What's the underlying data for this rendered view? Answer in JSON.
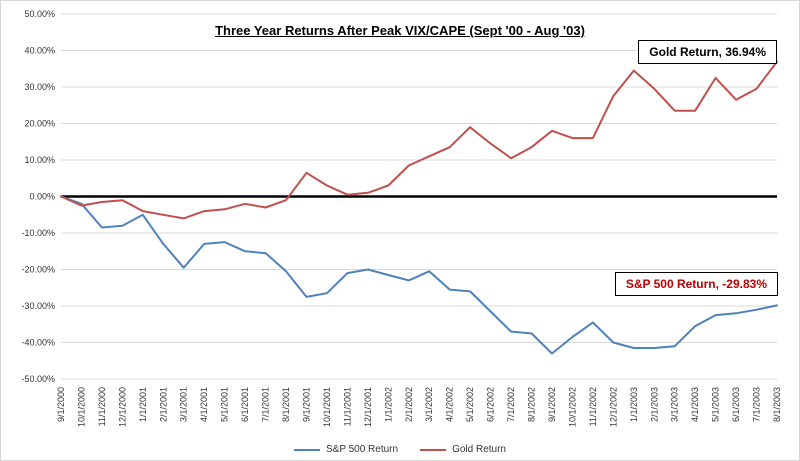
{
  "title": "Three Year Returns After Peak VIX/CAPE (Sept '00 - Aug '03)",
  "annotations": {
    "gold": {
      "text": "Gold Return, 36.94%",
      "color": "#000000"
    },
    "sp500": {
      "text": "S&P 500 Return, -29.83%",
      "color": "#C00000"
    }
  },
  "chart_data": {
    "type": "line",
    "title": "Three Year Returns After Peak VIX/CAPE (Sept '00 - Aug '03)",
    "xlabel": "",
    "ylabel": "",
    "ylim": [
      -50,
      50
    ],
    "ytick_step": 10,
    "ytick_format": "percent",
    "grid": true,
    "zero_line": true,
    "legend_position": "bottom",
    "x": [
      "9/1/2000",
      "10/1/2000",
      "11/1/2000",
      "12/1/2000",
      "1/1/2001",
      "2/1/2001",
      "3/1/2001",
      "4/1/2001",
      "5/1/2001",
      "6/1/2001",
      "7/1/2001",
      "8/1/2001",
      "9/1/2001",
      "10/1/2001",
      "11/1/2001",
      "12/1/2001",
      "1/1/2002",
      "2/1/2002",
      "3/1/2002",
      "4/1/2002",
      "5/1/2002",
      "6/1/2002",
      "7/1/2002",
      "8/1/2002",
      "9/1/2002",
      "10/1/2002",
      "11/1/2002",
      "12/1/2002",
      "1/1/2003",
      "2/1/2003",
      "3/1/2003",
      "4/1/2003",
      "5/1/2003",
      "6/1/2003",
      "7/1/2003",
      "8/1/2003"
    ],
    "series": [
      {
        "name": "S&P 500 Return",
        "color": "#4F81BD",
        "values": [
          0,
          -2,
          -8.5,
          -8,
          -5,
          -13,
          -19.5,
          -13,
          -12.5,
          -15,
          -15.5,
          -20.5,
          -27.5,
          -26.5,
          -21,
          -20,
          -21.5,
          -23,
          -20.5,
          -25.5,
          -26,
          -31.5,
          -37,
          -37.5,
          -43,
          -38.5,
          -34.5,
          -40,
          -41.5,
          -41.5,
          -41,
          -35.5,
          -32.5,
          -32,
          -31,
          -29.83
        ]
      },
      {
        "name": "Gold Return",
        "color": "#C0504D",
        "values": [
          0,
          -2.5,
          -1.5,
          -1,
          -4,
          -5,
          -6,
          -4,
          -3.5,
          -2,
          -3,
          -1,
          6.5,
          3,
          0.5,
          1,
          3,
          8.5,
          11,
          13.5,
          19,
          14.5,
          10.5,
          13.5,
          18,
          16,
          16,
          27.5,
          34.5,
          29.5,
          23.5,
          23.5,
          32.5,
          26.5,
          29.5,
          36.94
        ]
      }
    ]
  }
}
